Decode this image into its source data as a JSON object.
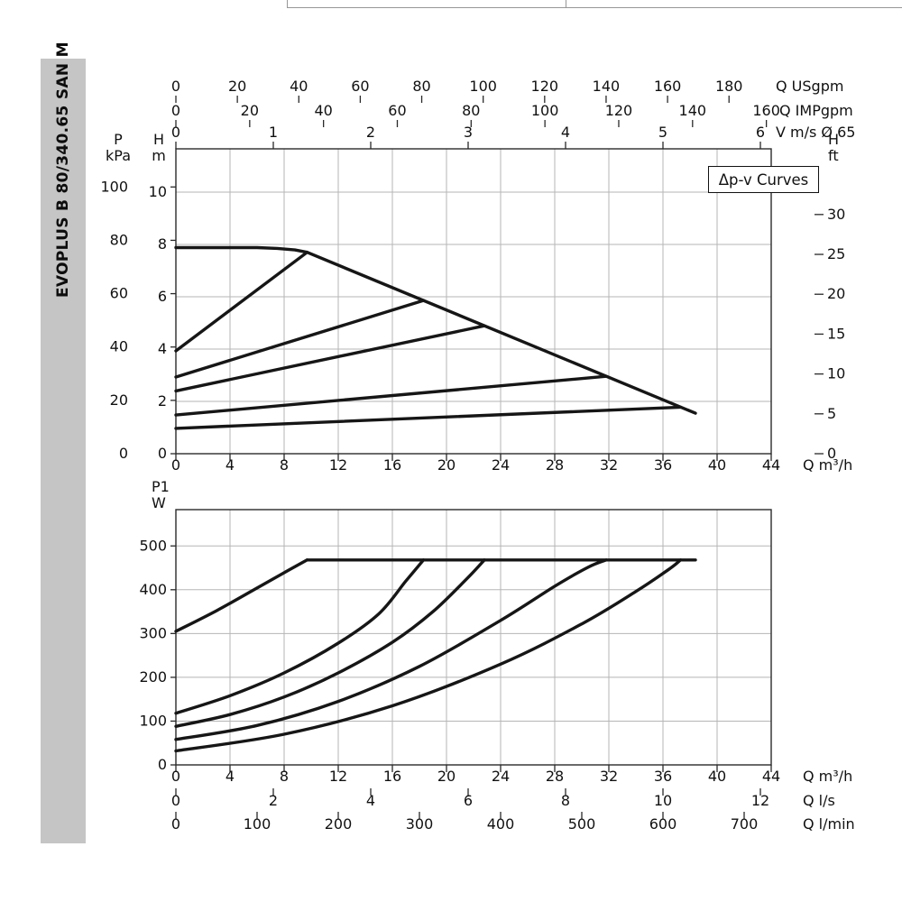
{
  "sidebar": {
    "model_label": "EVOPLUS B 80/340.65 SAN M"
  },
  "annotation_box": {
    "label": "Δp-v Curves"
  },
  "colors": {
    "curve": "#161616",
    "grid": "#b5b5b5",
    "axis": "#2a2a2a",
    "text": "#111111",
    "sidebar_bg": "#c5c5c5",
    "frame": "#979797"
  },
  "chart_data": [
    {
      "id": "head-flow-chart",
      "type": "line",
      "title": "Δp-v Curves",
      "x_range_m3h": [
        0,
        44
      ],
      "y_range_m": [
        0,
        11.65
      ],
      "grid": {
        "x_step_m3h": 4,
        "y_step_m": 2
      },
      "x_axes": [
        {
          "id": "usgpm",
          "unit": "Q USgpm",
          "position": "top",
          "m3h_per_unit": 0.22712,
          "ticks": [
            0,
            20,
            40,
            60,
            80,
            100,
            120,
            140,
            160,
            180
          ]
        },
        {
          "id": "impgpm",
          "unit": "Q IMPgpm",
          "position": "top",
          "m3h_per_unit": 0.27276,
          "ticks": [
            0,
            20,
            40,
            60,
            80,
            100,
            120,
            140,
            160
          ]
        },
        {
          "id": "v_ms",
          "unit": "V m/s Ø 65",
          "position": "top",
          "m3h_per_unit": 7.2,
          "ticks": [
            0,
            1,
            2,
            3,
            4,
            5,
            6
          ]
        },
        {
          "id": "m3h",
          "unit": "Q m³/h",
          "position": "bottom",
          "m3h_per_unit": 1,
          "ticks": [
            0,
            4,
            8,
            12,
            16,
            20,
            24,
            28,
            32,
            36,
            40,
            44
          ]
        }
      ],
      "y_axes": [
        {
          "id": "kpa",
          "label_parts": [
            "P",
            "kPa"
          ],
          "side": "left",
          "m_per_unit": 0.10197,
          "ticks": [
            0,
            20,
            40,
            60,
            80,
            100
          ]
        },
        {
          "id": "m",
          "label_parts": [
            "H",
            "m"
          ],
          "side": "left",
          "m_per_unit": 1,
          "gridlines": true,
          "ticks": [
            0,
            2,
            4,
            6,
            8,
            10
          ]
        },
        {
          "id": "ft",
          "label_parts": [
            "H",
            "ft"
          ],
          "side": "right",
          "m_per_unit": 0.3048,
          "ticks": [
            0,
            5,
            10,
            15,
            20,
            25,
            30
          ]
        }
      ],
      "series": [
        {
          "name": "max-speed-curve",
          "points": [
            [
              0,
              7.88
            ],
            [
              6,
              7.88
            ],
            [
              7.5,
              7.85
            ],
            [
              8.8,
              7.79
            ],
            [
              9.7,
              7.7
            ],
            [
              38.4,
              1.55
            ]
          ]
        },
        {
          "name": "dpv-setpoint-8m",
          "points": [
            [
              0,
              3.93
            ],
            [
              9.7,
              7.7
            ]
          ]
        },
        {
          "name": "dpv-setpoint-6m",
          "points": [
            [
              0,
              2.93
            ],
            [
              18.3,
              5.86
            ]
          ]
        },
        {
          "name": "dpv-setpoint-5m",
          "points": [
            [
              0,
              2.4
            ],
            [
              22.8,
              4.89
            ]
          ]
        },
        {
          "name": "dpv-setpoint-3m",
          "points": [
            [
              0,
              1.48
            ],
            [
              31.8,
              2.96
            ]
          ]
        },
        {
          "name": "dpv-setpoint-2m",
          "points": [
            [
              0,
              0.97
            ],
            [
              37.3,
              1.78
            ]
          ]
        }
      ]
    },
    {
      "id": "power-chart",
      "type": "line",
      "x_range_m3h": [
        0,
        44
      ],
      "y_range_w": [
        0,
        583
      ],
      "grid": {
        "x_step_m3h": 4,
        "y_step_w": 100
      },
      "x_axes": [
        {
          "id": "m3h",
          "unit": "Q m³/h",
          "position": "bottom",
          "m3h_per_unit": 1,
          "ticks": [
            0,
            4,
            8,
            12,
            16,
            20,
            24,
            28,
            32,
            36,
            40,
            44
          ]
        },
        {
          "id": "ls",
          "unit": "Q l/s",
          "position": "bottom",
          "m3h_per_unit": 3.6,
          "ticks": [
            0,
            2,
            4,
            6,
            8,
            10,
            12
          ]
        },
        {
          "id": "lmin",
          "unit": "Q l/min",
          "position": "bottom",
          "m3h_per_unit": 0.06,
          "ticks": [
            0,
            100,
            200,
            300,
            400,
            500,
            600,
            700
          ]
        }
      ],
      "y_axes": [
        {
          "id": "w",
          "label_parts": [
            "P1",
            "W"
          ],
          "side": "left",
          "gridlines": true,
          "ticks": [
            0,
            100,
            200,
            300,
            400,
            500
          ]
        }
      ],
      "series": [
        {
          "name": "p1-limit-plateau",
          "points": [
            [
              9.7,
              468
            ],
            [
              38.4,
              468
            ]
          ]
        },
        {
          "name": "p1-max",
          "smooth": true,
          "points": [
            [
              0,
              305
            ],
            [
              3,
              352
            ],
            [
              6,
              404
            ],
            [
              8.3,
              444
            ],
            [
              9.7,
              468
            ]
          ]
        },
        {
          "name": "p1-dpv-6m",
          "smooth": true,
          "points": [
            [
              0,
              118
            ],
            [
              4,
              158
            ],
            [
              8,
              210
            ],
            [
              12,
              278
            ],
            [
              15,
              345
            ],
            [
              17,
              420
            ],
            [
              18.3,
              468
            ]
          ]
        },
        {
          "name": "p1-dpv-5m",
          "smooth": true,
          "points": [
            [
              0,
              88
            ],
            [
              4,
              115
            ],
            [
              8,
              155
            ],
            [
              12,
              210
            ],
            [
              16,
              280
            ],
            [
              19,
              350
            ],
            [
              21.5,
              425
            ],
            [
              22.8,
              468
            ]
          ]
        },
        {
          "name": "p1-dpv-3m",
          "smooth": true,
          "points": [
            [
              0,
              58
            ],
            [
              6,
              90
            ],
            [
              12,
              145
            ],
            [
              18,
              225
            ],
            [
              24,
              330
            ],
            [
              28,
              408
            ],
            [
              30.5,
              452
            ],
            [
              31.8,
              468
            ]
          ]
        },
        {
          "name": "p1-dpv-2m",
          "smooth": true,
          "points": [
            [
              0,
              32
            ],
            [
              8,
              70
            ],
            [
              16,
              135
            ],
            [
              24,
              230
            ],
            [
              30,
              322
            ],
            [
              34,
              396
            ],
            [
              36.5,
              448
            ],
            [
              37.3,
              468
            ]
          ]
        }
      ]
    }
  ]
}
